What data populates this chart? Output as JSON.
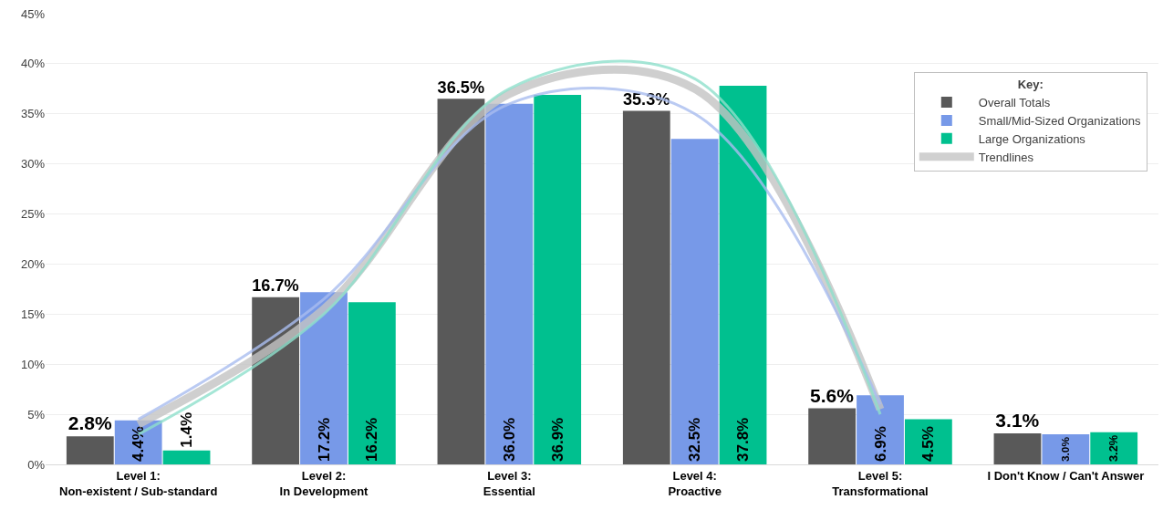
{
  "chart_data": {
    "type": "bar",
    "categories": [
      "Level 1:\nNon-existent / Sub-standard",
      "Level 2:\nIn Development",
      "Level 3:\nEssential",
      "Level 4:\nProactive",
      "Level 5:\nTransformational",
      "I Don't Know / Can't Answer"
    ],
    "series": [
      {
        "name": "Overall Totals",
        "color": "#595959",
        "values": [
          2.8,
          16.7,
          36.5,
          35.3,
          5.6,
          3.1
        ],
        "value_labels": [
          "2.8%",
          "16.7%",
          "36.5%",
          "35.3%",
          "5.6%",
          "3.1%"
        ]
      },
      {
        "name": "Small/Mid-Sized Organizations",
        "color": "#7799e8",
        "values": [
          4.4,
          17.2,
          36.0,
          32.5,
          6.9,
          3.0
        ],
        "value_labels": [
          "4.4%",
          "17.2%",
          "36.0%",
          "32.5%",
          "6.9%",
          "3.0%"
        ]
      },
      {
        "name": "Large Organizations",
        "color": "#00c08f",
        "values": [
          1.4,
          16.2,
          36.9,
          37.8,
          4.5,
          3.2
        ],
        "value_labels": [
          "1.4%",
          "16.2%",
          "36.9%",
          "37.8%",
          "4.5%",
          "3.2%"
        ]
      },
      {
        "name": "Trendlines",
        "type": "line",
        "color": "#c4c4c4",
        "values": [
          4.0,
          15.5,
          37.0,
          37.5,
          5.5,
          null
        ]
      },
      {
        "type": "line",
        "color": "#a9bdf0",
        "values": [
          4.5,
          16.5,
          36.0,
          35.0,
          6.0,
          null
        ]
      },
      {
        "type": "line",
        "color": "#8fe0cc",
        "values": [
          3.0,
          15.0,
          37.5,
          38.5,
          5.0,
          null
        ]
      }
    ],
    "ylim": [
      0,
      45
    ],
    "yticks": [
      {
        "value": 0,
        "label": "0%"
      },
      {
        "value": 5,
        "label": "5%"
      },
      {
        "value": 10,
        "label": "10%"
      },
      {
        "value": 15,
        "label": "15%"
      },
      {
        "value": 20,
        "label": "20%"
      },
      {
        "value": 25,
        "label": "25%"
      },
      {
        "value": 30,
        "label": "30%"
      },
      {
        "value": 35,
        "label": "35%"
      },
      {
        "value": 40,
        "label": "40%"
      },
      {
        "value": 45,
        "label": "45%"
      }
    ],
    "grid": "y",
    "legend": "top right",
    "legend_title": "Key:"
  }
}
